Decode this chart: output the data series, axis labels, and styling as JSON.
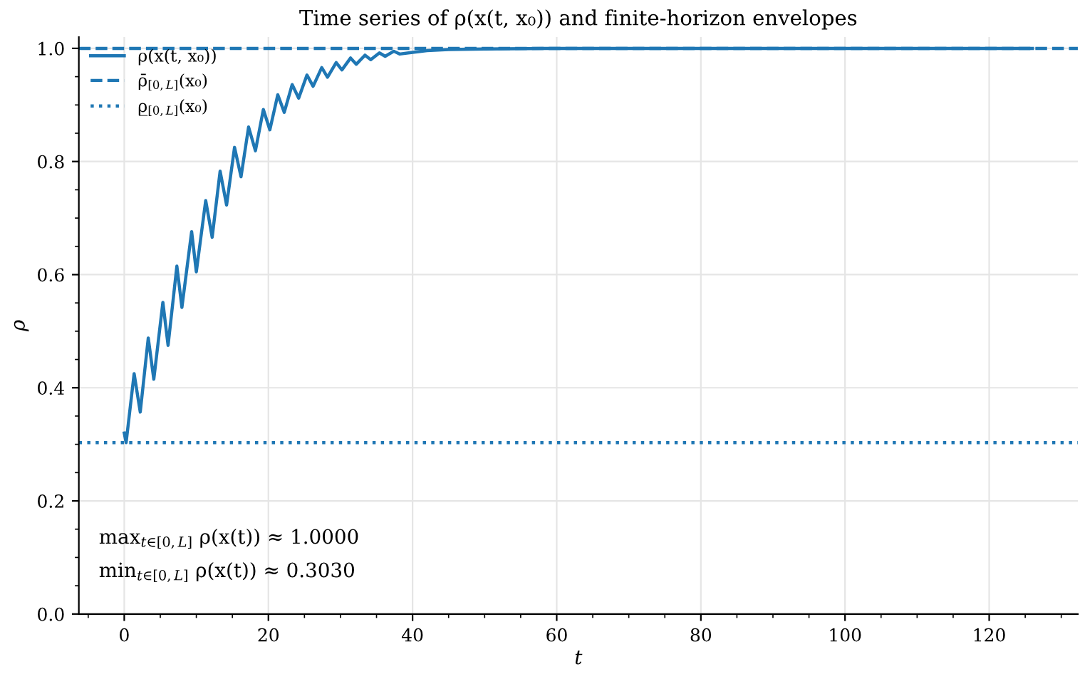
{
  "chart_data": {
    "type": "line",
    "title": "Time series of ρ(x(t, x₀)) and finite-horizon envelopes",
    "xlabel": "t",
    "ylabel": "ρ",
    "series": [
      {
        "name": "ρ(x(t, x₀))",
        "color": "#1f77b4",
        "line_style": "solid",
        "x": [
          0,
          0.26,
          1.37,
          2.22,
          3.33,
          4.1,
          5.36,
          6.08,
          7.3,
          8.0,
          9.35,
          10.0,
          11.3,
          12.2,
          13.3,
          14.2,
          15.3,
          16.2,
          17.25,
          18.2,
          19.3,
          20.2,
          21.3,
          22.2,
          23.3,
          24.2,
          25.35,
          26.2,
          27.4,
          28.2,
          29.4,
          30.2,
          31.4,
          32.2,
          33.4,
          34.2,
          35.4,
          36.2,
          37.4,
          38.2,
          40,
          42,
          45,
          50,
          60,
          126
        ],
        "values": [
          0.32,
          0.303,
          0.425,
          0.357,
          0.488,
          0.415,
          0.551,
          0.475,
          0.615,
          0.542,
          0.676,
          0.605,
          0.731,
          0.666,
          0.783,
          0.723,
          0.825,
          0.773,
          0.861,
          0.819,
          0.892,
          0.856,
          0.918,
          0.887,
          0.936,
          0.912,
          0.953,
          0.933,
          0.966,
          0.949,
          0.975,
          0.962,
          0.983,
          0.972,
          0.988,
          0.98,
          0.992,
          0.986,
          0.995,
          0.99,
          0.993,
          0.996,
          0.998,
          0.999,
          1.0,
          1.0
        ]
      }
    ],
    "ref_lines": [
      {
        "axis": "y",
        "value": 1.0,
        "label": "ρ̄$_{[0,L]}$(x₀)",
        "color": "#1f77b4",
        "line_style": "dashed"
      },
      {
        "axis": "y",
        "value": 0.303,
        "label": "ρ̲$_{[0,L]}$(x₀)",
        "color": "#1f77b4",
        "line_style": "dotted"
      }
    ],
    "annotations": [
      "max$_{t∈[0,L]}$ ρ(x(t)) ≈ 1.0000",
      "min$_{t∈[0,L]}$ ρ(x(t)) ≈ 0.3030"
    ],
    "xlim": [
      -6.3,
      132.3
    ],
    "xticks": [
      0,
      20,
      40,
      60,
      80,
      100,
      120
    ],
    "ylim": [
      0,
      1.02
    ],
    "yticks": [
      {
        "value": 0,
        "label": "0.0"
      },
      {
        "value": 0.2,
        "label": "0.2"
      },
      {
        "value": 0.4,
        "label": "0.4"
      },
      {
        "value": 0.6,
        "label": "0.6"
      },
      {
        "value": 0.8,
        "label": "0.8"
      },
      {
        "value": 1.0,
        "label": "1.0"
      }
    ],
    "grid": true,
    "legend": "top left",
    "marker": "none"
  }
}
